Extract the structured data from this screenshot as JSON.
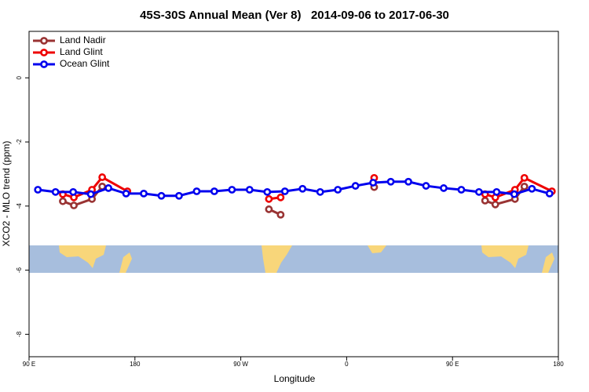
{
  "chart_data": {
    "type": "line",
    "title": "45S-30S Annual Mean (Ver 8)   2014-09-06 to 2017-06-30",
    "x_label": "Longitude",
    "y_label": "XCO2 - MLO trend (ppm)",
    "xlim": [
      90,
      540
    ],
    "xticks": [
      {
        "value": 90,
        "label": "90 E"
      },
      {
        "value": 180,
        "label": "180"
      },
      {
        "value": 270,
        "label": "90 W"
      },
      {
        "value": 360,
        "label": "0"
      },
      {
        "value": 450,
        "label": "90 E"
      },
      {
        "value": 540,
        "label": "180"
      }
    ],
    "ylim": [
      -8.7,
      1.45
    ],
    "yticks": [
      0,
      -2,
      -4,
      -6,
      -8
    ],
    "legend": "top-left",
    "series": [
      {
        "name": "Land Nadir",
        "color": "#993333",
        "x": [
          118.7,
          128.1,
          143.5,
          152.2,
          null,
          293.9,
          303.9,
          null,
          383.4,
          null,
          477.7,
          486.4,
          503.1,
          511.1
        ],
        "values": [
          -3.85,
          -3.98,
          -3.78,
          -3.39,
          null,
          -4.1,
          -4.27,
          null,
          -3.41,
          null,
          -3.83,
          -3.95,
          -3.78,
          -3.39
        ]
      },
      {
        "name": "Land Glint",
        "color": "#ee0000",
        "x": [
          118.7,
          128.1,
          143.5,
          152.2,
          173.6,
          null,
          293.9,
          303.9,
          null,
          383.4,
          null,
          477.7,
          486.4,
          503.1,
          511.1,
          534.5
        ],
        "values": [
          -3.63,
          -3.73,
          -3.49,
          -3.1,
          -3.54,
          null,
          -3.78,
          -3.73,
          null,
          -3.12,
          null,
          -3.63,
          -3.73,
          -3.49,
          -3.12,
          -3.54
        ]
      },
      {
        "name": "Ocean Glint",
        "color": "#0000ee",
        "x": [
          97.5,
          112.5,
          127.5,
          142.5,
          157.5,
          172.5,
          187.5,
          202.5,
          217.5,
          232.5,
          247.5,
          262.5,
          277.5,
          292.5,
          307.5,
          322.5,
          337.5,
          352.5,
          367.5,
          382.5,
          397.5,
          412.5,
          427.5,
          442.5,
          457.5,
          472.5,
          487.5,
          502.5,
          517.5,
          532.5
        ],
        "values": [
          -3.49,
          -3.56,
          -3.56,
          -3.63,
          -3.44,
          -3.61,
          -3.61,
          -3.68,
          -3.68,
          -3.54,
          -3.54,
          -3.49,
          -3.49,
          -3.56,
          -3.54,
          -3.46,
          -3.56,
          -3.49,
          -3.37,
          -3.27,
          -3.24,
          -3.24,
          -3.37,
          -3.44,
          -3.49,
          -3.56,
          -3.56,
          -3.63,
          -3.46,
          -3.61
        ]
      }
    ]
  }
}
